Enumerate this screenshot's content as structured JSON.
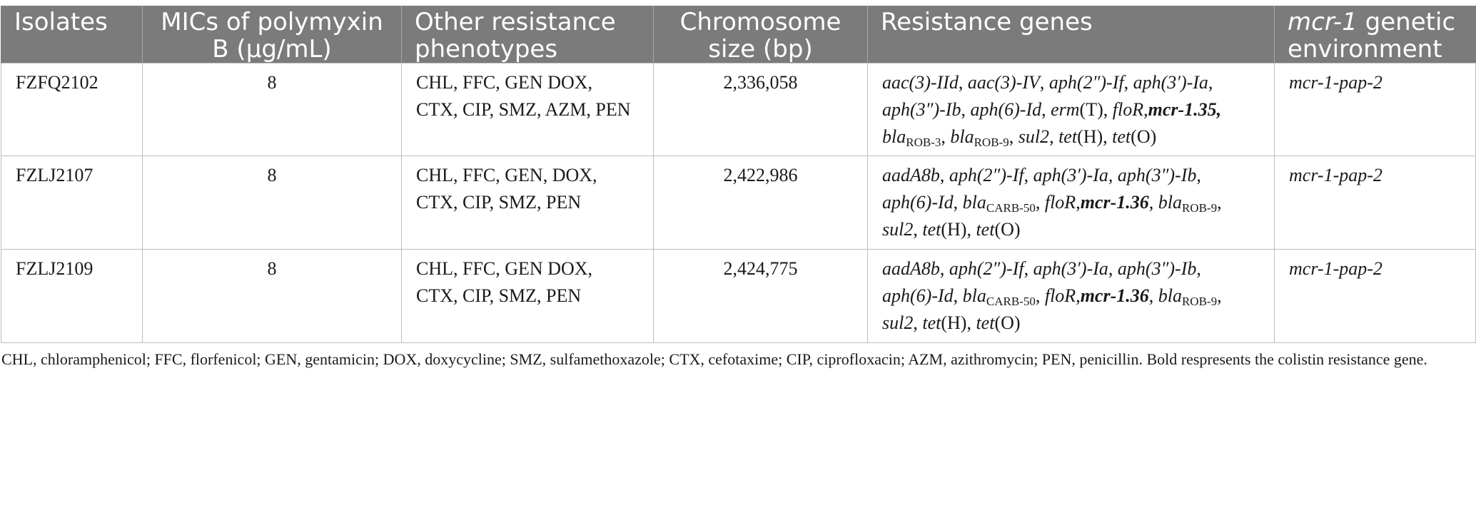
{
  "table": {
    "headers": {
      "isolates": "Isolates",
      "mic": "MICs of polymyxin B (μg/mL)",
      "other": "Other resistance phenotypes",
      "chrom": "Chromosome size (bp)",
      "genes": "Resistance genes",
      "env_italic": "mcr-1",
      "env_rest": " genetic environment"
    },
    "rows": [
      {
        "isolate": "FZFQ2102",
        "mic": "8",
        "phenotypes": "CHL, FFC, GEN DOX, CTX, CIP, SMZ, AZM, PEN",
        "chrom": "2,336,058",
        "genes": {
          "g1": "aac(3)-IId",
          "s1": ", ",
          "g2": "aac(3)-IV",
          "s2": ", ",
          "g3": "aph(2″)-If",
          "s3": ", ",
          "g4": "aph(3′)-Ia",
          "s4": ", ",
          "g5": "aph(3″)-Ib",
          "s5": ", ",
          "g6": "aph(6)-Id",
          "s6": ", ",
          "g7a": "erm",
          "g7b": "(T)",
          "s7": ", ",
          "g8": "floR",
          "s8": ",",
          "mcr": "mcr-1.35,",
          "s9": " ",
          "bla1": "bla",
          "bla1sub": "ROB-3",
          "s10": ", ",
          "bla2": "bla",
          "bla2sub": "ROB-9",
          "s11": ", ",
          "g9": "sul2",
          "s12": ", ",
          "t1a": "tet",
          "t1b": "(H)",
          "s13": ", ",
          "t2a": "tet",
          "t2b": "(O)"
        },
        "env": "mcr-1-pap-2"
      },
      {
        "isolate": "FZLJ2107",
        "mic": "8",
        "phenotypes": "CHL, FFC, GEN, DOX, CTX, CIP, SMZ, PEN",
        "chrom": "2,422,986",
        "genes": {
          "g1": "aadA8b",
          "s1": ", ",
          "g2": "aph(2″)-If",
          "s2": ", ",
          "g3": "aph(3′)-Ia",
          "s3": ", ",
          "g4": "aph(3″)-Ib",
          "s4": ", ",
          "g5": "aph(6)-Id",
          "s5": ", ",
          "bla1": "bla",
          "bla1sub": "CARB-50",
          "s6": ", ",
          "g6": "floR",
          "s7": ",",
          "mcr": "mcr-1.36",
          "s8": ", ",
          "bla2": "bla",
          "bla2sub": "ROB-9",
          "s9": ", ",
          "g7": "sul2",
          "s10": ", ",
          "t1a": "tet",
          "t1b": "(H)",
          "s11": ", ",
          "t2a": "tet",
          "t2b": "(O)"
        },
        "env": "mcr-1-pap-2"
      },
      {
        "isolate": "FZLJ2109",
        "mic": "8",
        "phenotypes": "CHL, FFC, GEN DOX, CTX, CIP, SMZ, PEN",
        "chrom": "2,424,775",
        "genes": {
          "g1": "aadA8b",
          "s1": ", ",
          "g2": "aph(2″)-If",
          "s2": ", ",
          "g3": "aph(3′)-Ia",
          "s3": ", ",
          "g4": "aph(3″)-Ib",
          "s4": ", ",
          "g5": "aph(6)-Id",
          "s5": ", ",
          "bla1": "bla",
          "bla1sub": "CARB-50",
          "s6": ", ",
          "g6": "floR",
          "s7": ",",
          "mcr": "mcr-1.36",
          "s8": ", ",
          "bla2": "bla",
          "bla2sub": "ROB-9",
          "s9": ", ",
          "g7": "sul2",
          "s10": ", ",
          "t1a": "tet",
          "t1b": "(H)",
          "s11": ", ",
          "t2a": "tet",
          "t2b": "(O)"
        },
        "env": "mcr-1-pap-2"
      }
    ]
  },
  "footnote": "CHL, chloramphenicol; FFC, florfenicol; GEN, gentamicin; DOX, doxycycline; SMZ, sulfamethoxazole; CTX, cefotaxime; CIP, ciprofloxacin; AZM, azithromycin; PEN, penicillin. Bold respresents the colistin resistance gene.",
  "colors": {
    "header_bg": "#7b7b7b",
    "header_text": "#ffffff",
    "grid": "#bdbdbd"
  }
}
